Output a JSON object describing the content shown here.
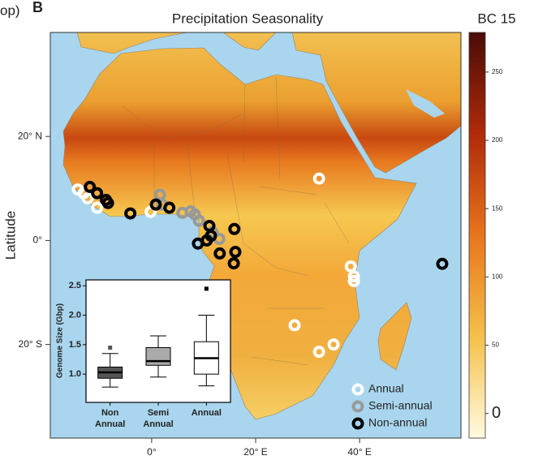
{
  "header": {
    "cropped_text": "op)",
    "panel": "B"
  },
  "map": {
    "title": "Precipitation Seasonality",
    "colorbar_title": "BC 15",
    "y_axis_label": "Latitude",
    "xlim": [
      -19.5,
      59.5
    ],
    "ylim": [
      -38,
      40
    ],
    "lat_ticks": [
      {
        "value": 20,
        "label": "20° N"
      },
      {
        "value": 0,
        "label": "0°"
      },
      {
        "value": -20,
        "label": "20° S"
      }
    ],
    "lon_ticks": [
      {
        "value": 0,
        "label": "0°"
      },
      {
        "value": 20,
        "label": "20° E"
      },
      {
        "value": 40,
        "label": "40° E"
      }
    ],
    "colorbar": {
      "lim": [
        -18,
        279
      ],
      "ticks": [
        0,
        50,
        100,
        150,
        200,
        250
      ]
    },
    "series": [
      {
        "name": "Annual",
        "color": "#ffffff",
        "lon": [
          -14.2,
          -13.1,
          -12.3,
          -10.5,
          -0.2,
          32.2,
          38.3,
          38.9,
          38.9,
          27.5,
          32.2,
          35.0
        ],
        "lat": [
          9.8,
          9.1,
          8.1,
          6.3,
          5.5,
          11.9,
          -5.0,
          -6.9,
          -7.8,
          -16.3,
          -21.4,
          -20.0
        ]
      },
      {
        "name": "Semi-annual",
        "color": "#999999",
        "lon": [
          1.6,
          2.0,
          5.9,
          7.5,
          8.3,
          9.1,
          11.7,
          13.0
        ],
        "lat": [
          8.8,
          6.9,
          5.3,
          5.6,
          5.0,
          3.8,
          1.6,
          0.3
        ]
      },
      {
        "name": "Non-annual",
        "color": "#000000",
        "lon": [
          -11.9,
          -10.5,
          -8.8,
          -8.4,
          -4.1,
          0.8,
          3.4,
          11.1,
          15.9,
          8.9,
          10.6,
          16.1,
          13.1,
          15.8,
          55.9,
          11.4
        ],
        "lat": [
          10.3,
          9.1,
          7.8,
          7.2,
          5.2,
          6.9,
          6.3,
          2.8,
          2.2,
          -0.6,
          0.0,
          -2.2,
          -2.5,
          -4.4,
          -4.5,
          0.9
        ]
      }
    ]
  },
  "inset": {
    "type": "box",
    "y_label": "Genome Size (Gbp)",
    "ylim": [
      0.52,
      2.6
    ],
    "yticks": [
      {
        "value": 1,
        "label": "1.0"
      },
      {
        "value": 1.5,
        "label": "1.5"
      },
      {
        "value": 2,
        "label": "2.0"
      },
      {
        "value": 2.5,
        "label": "2.5"
      }
    ],
    "categories": [
      [
        "Non",
        "Annual"
      ],
      [
        "Semi",
        "Annual"
      ],
      [
        "Annual"
      ]
    ],
    "colors": [
      "#555555",
      "#aaaaaa",
      "#ffffff"
    ],
    "boxes": [
      {
        "whislo": 0.78,
        "q1": 0.93,
        "med": 1.03,
        "q3": 1.12,
        "whishi": 1.35,
        "fliers": [
          1.45
        ]
      },
      {
        "whislo": 0.95,
        "q1": 1.15,
        "med": 1.22,
        "q3": 1.45,
        "whishi": 1.65,
        "fliers": []
      },
      {
        "whislo": 0.8,
        "q1": 1.0,
        "med": 1.27,
        "q3": 1.55,
        "whishi": 2.0,
        "fliers": [
          2.45
        ]
      }
    ]
  }
}
